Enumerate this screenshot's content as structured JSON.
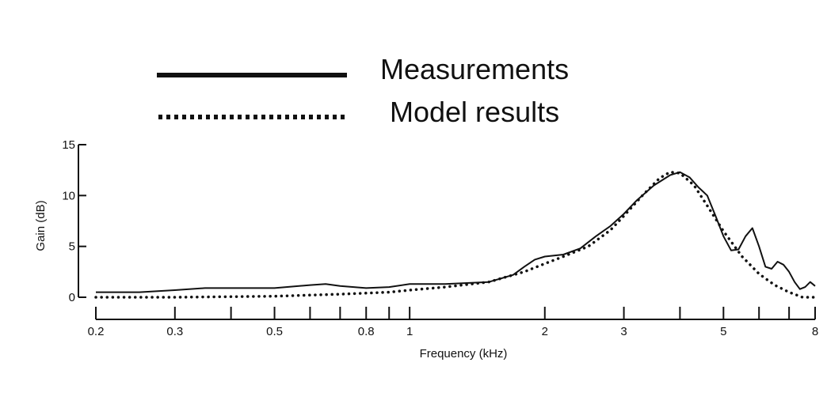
{
  "chart_data": {
    "type": "line",
    "title": "",
    "xlabel": "Frequency (kHz)",
    "ylabel": "Gain (dB)",
    "xscale": "log",
    "xlim": [
      0.2,
      8
    ],
    "ylim": [
      0,
      15
    ],
    "grid": false,
    "legend_position": "top",
    "x_tick_labels": [
      {
        "value": 0.2,
        "label": "0.2"
      },
      {
        "value": 0.3,
        "label": "0.3"
      },
      {
        "value": 0.5,
        "label": "0.5"
      },
      {
        "value": 0.8,
        "label": "0.8"
      },
      {
        "value": 1,
        "label": "1"
      },
      {
        "value": 2,
        "label": "2"
      },
      {
        "value": 3,
        "label": "3"
      },
      {
        "value": 5,
        "label": "5"
      },
      {
        "value": 8,
        "label": "8"
      }
    ],
    "x_minor_ticks": [
      0.4,
      0.6,
      0.7,
      0.9,
      4,
      6,
      7
    ],
    "y_ticks": [
      0,
      5,
      10,
      15
    ],
    "series": [
      {
        "name": "Measurements",
        "style": "solid",
        "x": [
          0.2,
          0.25,
          0.3,
          0.35,
          0.4,
          0.5,
          0.6,
          0.65,
          0.7,
          0.8,
          0.9,
          1.0,
          1.2,
          1.5,
          1.7,
          1.8,
          1.9,
          2.0,
          2.2,
          2.4,
          2.6,
          2.8,
          3.0,
          3.2,
          3.5,
          3.8,
          4.0,
          4.2,
          4.4,
          4.6,
          4.8,
          5.0,
          5.2,
          5.4,
          5.6,
          5.8,
          6.0,
          6.2,
          6.4,
          6.6,
          6.8,
          7.0,
          7.2,
          7.4,
          7.6,
          7.8,
          8.0
        ],
        "y": [
          0.5,
          0.5,
          0.7,
          0.9,
          0.9,
          0.9,
          1.2,
          1.3,
          1.1,
          0.9,
          1.0,
          1.3,
          1.3,
          1.5,
          2.2,
          3.0,
          3.7,
          4.0,
          4.2,
          4.8,
          6.0,
          7.0,
          8.2,
          9.5,
          11.0,
          12.0,
          12.3,
          11.8,
          10.8,
          10.0,
          8.0,
          6.0,
          4.6,
          4.7,
          6.0,
          6.8,
          5.0,
          3.0,
          2.8,
          3.5,
          3.2,
          2.5,
          1.5,
          0.8,
          1.0,
          1.5,
          1.1
        ]
      },
      {
        "name": "Model results",
        "style": "dotted",
        "x": [
          0.2,
          0.3,
          0.5,
          0.7,
          0.9,
          1.0,
          1.2,
          1.5,
          1.8,
          2.0,
          2.2,
          2.5,
          2.8,
          3.0,
          3.3,
          3.6,
          3.8,
          4.0,
          4.3,
          4.6,
          5.0,
          5.5,
          6.0,
          6.5,
          7.0,
          7.5,
          8.0
        ],
        "y": [
          0.0,
          0.0,
          0.1,
          0.3,
          0.5,
          0.7,
          1.0,
          1.5,
          2.5,
          3.3,
          4.0,
          5.0,
          6.6,
          8.0,
          10.0,
          11.7,
          12.3,
          12.2,
          11.0,
          9.0,
          6.5,
          4.0,
          2.3,
          1.2,
          0.5,
          0.0,
          0.0
        ]
      }
    ]
  }
}
